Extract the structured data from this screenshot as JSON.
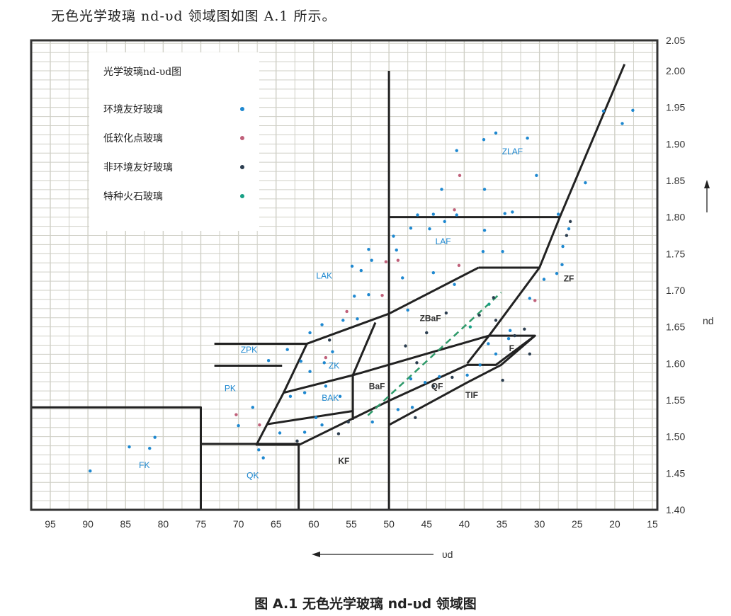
{
  "intro_text": "无色光学玻璃 nd-υd 领域图如图 A.1 所示。",
  "caption": "图 A.1   无色光学玻璃 nd-υd 领域图",
  "chart_data": {
    "type": "scatter",
    "title": "光学玻璃nd-υd图",
    "xlabel": "υd",
    "ylabel": "nd",
    "xlim": [
      97.5,
      14.5
    ],
    "ylim": [
      1.4,
      2.05
    ],
    "x_reversed": true,
    "grid": true,
    "legend_position": "top-left",
    "x_ticks": [
      "95",
      "90",
      "85",
      "80",
      "75",
      "70",
      "65",
      "60",
      "55",
      "50",
      "45",
      "40",
      "35",
      "30",
      "25",
      "20",
      "15"
    ],
    "y_ticks": [
      "2.05",
      "2.00",
      "1.95",
      "1.90",
      "1.85",
      "1.80",
      "1.75",
      "1.70",
      "1.65",
      "1.60",
      "1.55",
      "1.50",
      "1.45",
      "1.40"
    ],
    "series": [
      {
        "name": "环境友好玻璃",
        "color": "#1e88d0",
        "points": [
          [
            89.7,
            1.453
          ],
          [
            84.5,
            1.486
          ],
          [
            81.8,
            1.484
          ],
          [
            81.1,
            1.499
          ],
          [
            70.0,
            1.515
          ],
          [
            68.1,
            1.54
          ],
          [
            67.3,
            1.482
          ],
          [
            66.7,
            1.471
          ],
          [
            63.5,
            1.619
          ],
          [
            66.0,
            1.604
          ],
          [
            60.5,
            1.642
          ],
          [
            58.9,
            1.653
          ],
          [
            56.1,
            1.659
          ],
          [
            54.6,
            1.692
          ],
          [
            52.7,
            1.694
          ],
          [
            53.7,
            1.727
          ],
          [
            54.9,
            1.733
          ],
          [
            52.3,
            1.741
          ],
          [
            52.7,
            1.756
          ],
          [
            49.4,
            1.774
          ],
          [
            49.0,
            1.755
          ],
          [
            48.2,
            1.717
          ],
          [
            47.5,
            1.673
          ],
          [
            47.1,
            1.785
          ],
          [
            46.2,
            1.803
          ],
          [
            44.1,
            1.804
          ],
          [
            44.6,
            1.784
          ],
          [
            42.6,
            1.794
          ],
          [
            41.0,
            1.803
          ],
          [
            41.0,
            1.891
          ],
          [
            43.0,
            1.838
          ],
          [
            37.3,
            1.838
          ],
          [
            35.8,
            1.915
          ],
          [
            37.4,
            1.906
          ],
          [
            31.6,
            1.908
          ],
          [
            30.4,
            1.857
          ],
          [
            34.6,
            1.805
          ],
          [
            33.6,
            1.807
          ],
          [
            37.3,
            1.782
          ],
          [
            37.5,
            1.753
          ],
          [
            34.9,
            1.753
          ],
          [
            44.1,
            1.724
          ],
          [
            41.3,
            1.708
          ],
          [
            21.5,
            1.945
          ],
          [
            17.6,
            1.946
          ],
          [
            19.0,
            1.928
          ],
          [
            23.9,
            1.847
          ],
          [
            27.5,
            1.804
          ],
          [
            26.1,
            1.784
          ],
          [
            26.9,
            1.76
          ],
          [
            27.0,
            1.735
          ],
          [
            27.7,
            1.723
          ],
          [
            29.4,
            1.715
          ],
          [
            31.3,
            1.689
          ],
          [
            33.9,
            1.645
          ],
          [
            34.1,
            1.634
          ],
          [
            36.8,
            1.627
          ],
          [
            35.8,
            1.613
          ],
          [
            37.9,
            1.598
          ],
          [
            39.6,
            1.584
          ],
          [
            43.3,
            1.582
          ],
          [
            45.2,
            1.574
          ],
          [
            46.9,
            1.54
          ],
          [
            48.8,
            1.537
          ],
          [
            52.2,
            1.52
          ],
          [
            57.5,
            1.616
          ],
          [
            58.6,
            1.601
          ],
          [
            61.7,
            1.603
          ],
          [
            61.2,
            1.56
          ],
          [
            63.1,
            1.555
          ],
          [
            59.7,
            1.526
          ],
          [
            58.9,
            1.516
          ],
          [
            61.2,
            1.506
          ],
          [
            64.5,
            1.505
          ],
          [
            60.5,
            1.589
          ],
          [
            58.4,
            1.569
          ],
          [
            56.5,
            1.555
          ],
          [
            54.2,
            1.661
          ],
          [
            47.1,
            1.579
          ]
        ]
      },
      {
        "name": "低软化点玻璃",
        "color": "#c0607a",
        "points": [
          [
            40.6,
            1.857
          ],
          [
            41.3,
            1.81
          ],
          [
            48.8,
            1.741
          ],
          [
            50.4,
            1.739
          ],
          [
            40.7,
            1.734
          ],
          [
            55.6,
            1.671
          ],
          [
            58.4,
            1.608
          ],
          [
            70.3,
            1.53
          ],
          [
            67.2,
            1.516
          ],
          [
            50.9,
            1.693
          ],
          [
            30.6,
            1.686
          ]
        ]
      },
      {
        "name": "非环境友好玻璃",
        "color": "#2c3e50",
        "points": [
          [
            42.4,
            1.669
          ],
          [
            45.0,
            1.642
          ],
          [
            47.8,
            1.624
          ],
          [
            38.0,
            1.666
          ],
          [
            35.8,
            1.659
          ],
          [
            36.1,
            1.69
          ],
          [
            46.3,
            1.601
          ],
          [
            44.1,
            1.569
          ],
          [
            46.5,
            1.526
          ],
          [
            57.9,
            1.632
          ],
          [
            25.9,
            1.794
          ],
          [
            26.4,
            1.775
          ],
          [
            32.0,
            1.647
          ],
          [
            33.3,
            1.638
          ],
          [
            31.3,
            1.613
          ],
          [
            34.9,
            1.577
          ],
          [
            55.4,
            1.52
          ],
          [
            56.7,
            1.504
          ],
          [
            62.2,
            1.494
          ],
          [
            41.6,
            1.581
          ]
        ]
      },
      {
        "name": "特种火石玻璃",
        "color": "#17a085",
        "points": [
          [
            36.7,
            1.681
          ],
          [
            39.2,
            1.65
          ]
        ]
      }
    ],
    "boundaries": [
      [
        [
          97.5,
          1.54
        ],
        [
          75,
          1.54
        ],
        [
          75,
          1.4
        ]
      ],
      [
        [
          75,
          1.49
        ],
        [
          62,
          1.49
        ],
        [
          62,
          1.4
        ]
      ],
      [
        [
          50,
          2.0
        ],
        [
          50,
          1.4
        ]
      ],
      [
        [
          50,
          1.8
        ],
        [
          27.3,
          1.8
        ]
      ],
      [
        [
          18.7,
          2.009
        ],
        [
          27.3,
          1.8
        ],
        [
          30.0,
          1.731
        ],
        [
          36.7,
          1.638
        ],
        [
          39.6,
          1.6
        ]
      ],
      [
        [
          38.1,
          1.731
        ],
        [
          30.0,
          1.731
        ]
      ],
      [
        [
          38.1,
          1.731
        ],
        [
          50,
          1.668
        ],
        [
          60.9,
          1.627
        ],
        [
          73.2,
          1.627
        ]
      ],
      [
        [
          73.2,
          1.597
        ],
        [
          64.2,
          1.597
        ]
      ],
      [
        [
          60.9,
          1.627
        ],
        [
          64.0,
          1.56
        ],
        [
          67.6,
          1.489
        ],
        [
          61.9,
          1.489
        ],
        [
          50,
          1.549
        ],
        [
          39.6,
          1.598
        ],
        [
          35.8,
          1.598
        ],
        [
          30.6,
          1.638
        ],
        [
          36.7,
          1.638
        ]
      ],
      [
        [
          50,
          1.516
        ],
        [
          39.6,
          1.574
        ],
        [
          35.1,
          1.598
        ],
        [
          30.6,
          1.638
        ]
      ],
      [
        [
          64.0,
          1.56
        ],
        [
          54.8,
          1.584
        ],
        [
          36.7,
          1.638
        ]
      ],
      [
        [
          51.8,
          1.656
        ],
        [
          54.8,
          1.584
        ],
        [
          54.8,
          1.523
        ]
      ],
      [
        [
          66.2,
          1.517
        ],
        [
          54.8,
          1.535
        ]
      ]
    ],
    "special_flint_line": [
      [
        52.8,
        1.529
      ],
      [
        35.1,
        1.697
      ]
    ],
    "region_labels": [
      {
        "text": "ZLAF",
        "x": 33.6,
        "y": 1.886,
        "color": "#1e88d0"
      },
      {
        "text": "LAF",
        "x": 42.8,
        "y": 1.763,
        "color": "#1e88d0"
      },
      {
        "text": "LAK",
        "x": 58.6,
        "y": 1.716,
        "color": "#1e88d0"
      },
      {
        "text": "ZPK",
        "x": 68.6,
        "y": 1.615,
        "color": "#1e88d0"
      },
      {
        "text": "PK",
        "x": 71.1,
        "y": 1.562,
        "color": "#1e88d0"
      },
      {
        "text": "FK",
        "x": 82.5,
        "y": 1.457,
        "color": "#1e88d0"
      },
      {
        "text": "QK",
        "x": 68.1,
        "y": 1.443,
        "color": "#1e88d0"
      },
      {
        "text": "ZK",
        "x": 57.3,
        "y": 1.593,
        "color": "#1e88d0"
      },
      {
        "text": "BAK",
        "x": 57.8,
        "y": 1.549,
        "color": "#1e88d0"
      },
      {
        "text": "KF",
        "x": 56.0,
        "y": 1.463,
        "color": "#333333"
      },
      {
        "text": "BaF",
        "x": 51.6,
        "y": 1.565,
        "color": "#333333"
      },
      {
        "text": "ZBaF",
        "x": 44.5,
        "y": 1.658,
        "color": "#333333"
      },
      {
        "text": "QF",
        "x": 43.6,
        "y": 1.565,
        "color": "#333333"
      },
      {
        "text": "TIF",
        "x": 39.0,
        "y": 1.553,
        "color": "#333333"
      },
      {
        "text": "F",
        "x": 33.7,
        "y": 1.617,
        "color": "#333333"
      },
      {
        "text": "ZF",
        "x": 26.1,
        "y": 1.712,
        "color": "#333333"
      }
    ]
  }
}
